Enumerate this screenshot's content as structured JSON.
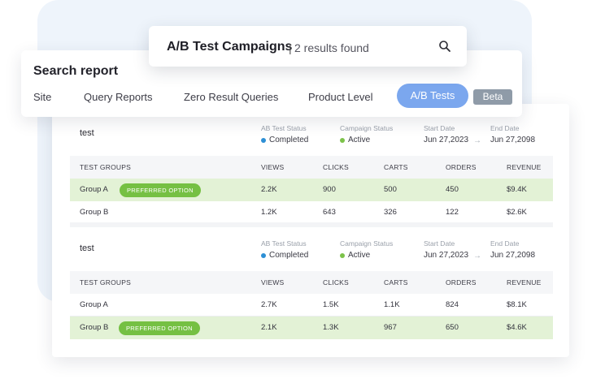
{
  "search": {
    "title": "A/B Test Campaigns",
    "separator": "|",
    "results": "2 results found"
  },
  "report": {
    "title": "Search report",
    "tabs": [
      {
        "label": "Site"
      },
      {
        "label": "Query Reports"
      },
      {
        "label": "Zero Result Queries"
      },
      {
        "label": "Product Level"
      },
      {
        "label": "A/B Tests",
        "active": true
      }
    ],
    "beta_label": "Beta"
  },
  "meta_labels": {
    "ab_status": "AB Test Status",
    "campaign_status": "Campaign Status",
    "start_date": "Start Date",
    "end_date": "End Date"
  },
  "table_headers": [
    "TEST GROUPS",
    "VIEWS",
    "CLICKS",
    "CARTS",
    "ORDERS",
    "REVENUE"
  ],
  "preferred_label": "PREFERRED OPTION",
  "colors": {
    "completed_dot": "#2d8fd5",
    "active_dot": "#7cc24a",
    "preferred_row": "#e3f2d6",
    "preferred_badge": "#75c043",
    "active_tab": "#7ba7ee"
  },
  "campaigns": [
    {
      "name": "test",
      "ab_status": "Completed",
      "campaign_status": "Active",
      "start_date": "Jun 27,2023",
      "end_date": "Jun 27,2098",
      "rows": [
        {
          "group": "Group A",
          "preferred": true,
          "views": "2.2K",
          "clicks": "900",
          "carts": "500",
          "orders": "450",
          "revenue": "$9.4K"
        },
        {
          "group": "Group B",
          "preferred": false,
          "views": "1.2K",
          "clicks": "643",
          "carts": "326",
          "orders": "122",
          "revenue": "$2.6K"
        }
      ]
    },
    {
      "name": "test",
      "ab_status": "Completed",
      "campaign_status": "Active",
      "start_date": "Jun 27,2023",
      "end_date": "Jun 27,2098",
      "rows": [
        {
          "group": "Group A",
          "preferred": false,
          "views": "2.7K",
          "clicks": "1.5K",
          "carts": "1.1K",
          "orders": "824",
          "revenue": "$8.1K"
        },
        {
          "group": "Group B",
          "preferred": true,
          "views": "2.1K",
          "clicks": "1.3K",
          "carts": "967",
          "orders": "650",
          "revenue": "$4.6K"
        }
      ]
    }
  ]
}
